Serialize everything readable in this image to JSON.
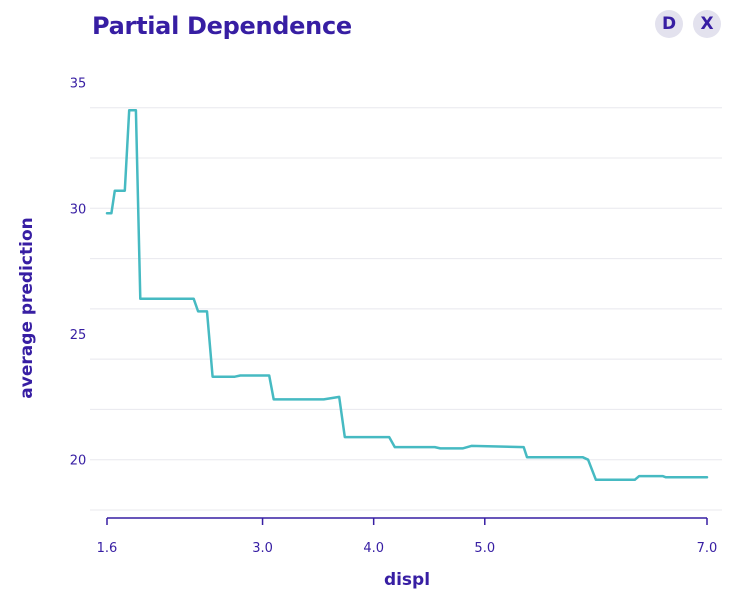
{
  "title": "Partial Dependence",
  "buttons": {
    "d_label": "D",
    "x_label": "X"
  },
  "colors": {
    "accent": "#371ea3",
    "line": "#46bac2",
    "grid": "#e8e8ee"
  },
  "chart_data": {
    "type": "line",
    "title": "Partial Dependence",
    "xlabel": "displ",
    "ylabel": "average prediction",
    "xlim": [
      1.6,
      7.0
    ],
    "ylim": [
      18,
      35.5
    ],
    "x_ticks": [
      1.6,
      3.0,
      4.0,
      5.0,
      7.0
    ],
    "x_tick_labels": [
      "1.6",
      "3.0",
      "4.0",
      "5.0",
      "7.0"
    ],
    "y_ticks": [
      20,
      25,
      30,
      35
    ],
    "y_tick_labels": [
      "20",
      "25",
      "30",
      "35"
    ],
    "grid": true,
    "series": [
      {
        "values": [
          [
            1.6,
            29.8
          ],
          [
            1.64,
            29.8
          ],
          [
            1.67,
            30.7
          ],
          [
            1.76,
            30.7
          ],
          [
            1.8,
            33.9
          ],
          [
            1.86,
            33.9
          ],
          [
            1.9,
            26.4
          ],
          [
            2.38,
            26.4
          ],
          [
            2.42,
            25.9
          ],
          [
            2.5,
            25.9
          ],
          [
            2.55,
            23.3
          ],
          [
            2.75,
            23.3
          ],
          [
            2.8,
            23.35
          ],
          [
            3.06,
            23.35
          ],
          [
            3.1,
            22.4
          ],
          [
            3.55,
            22.4
          ],
          [
            3.69,
            22.5
          ],
          [
            3.74,
            20.9
          ],
          [
            4.14,
            20.9
          ],
          [
            4.19,
            20.5
          ],
          [
            4.55,
            20.5
          ],
          [
            4.6,
            20.45
          ],
          [
            4.8,
            20.45
          ],
          [
            4.88,
            20.55
          ],
          [
            5.35,
            20.5
          ],
          [
            5.38,
            20.1
          ],
          [
            5.88,
            20.1
          ],
          [
            5.93,
            20.0
          ],
          [
            6.0,
            19.2
          ],
          [
            6.35,
            19.2
          ],
          [
            6.39,
            19.35
          ],
          [
            6.6,
            19.35
          ],
          [
            6.63,
            19.3
          ],
          [
            7.0,
            19.3
          ]
        ]
      }
    ]
  }
}
